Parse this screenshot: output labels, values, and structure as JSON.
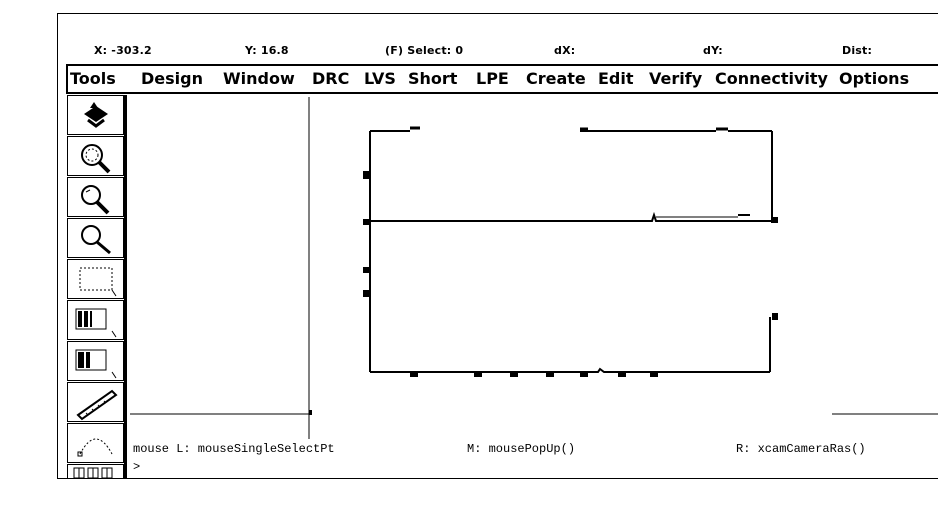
{
  "coordinates": {
    "x": "X: -303.2",
    "y": "Y: 16.8",
    "select": "(F) Select: 0",
    "dx": "dX:",
    "dy": "dY:",
    "dist": "Dist:"
  },
  "menu": {
    "items": [
      "Tools",
      "Design",
      "Window",
      "DRC",
      "LVS",
      "Short",
      "LPE",
      "Create",
      "Edit",
      "Verify",
      "Connectivity",
      "Options"
    ]
  },
  "toolbar": {
    "icons": [
      "save-icon",
      "zoom-fit-icon",
      "zoom-in-icon",
      "zoom-out-icon",
      "select-box-icon",
      "stretch-icon",
      "copy-icon",
      "ruler-icon",
      "arc-icon",
      "grid-icon"
    ]
  },
  "status": {
    "mouse_left": "mouse L: mouseSingleSelectPt",
    "mouse_middle": "M: mousePopUp()",
    "mouse_right": "R: xcamCameraRas()",
    "prompt": ">"
  },
  "colors": {
    "foreground": "#000000",
    "background": "#ffffff"
  }
}
